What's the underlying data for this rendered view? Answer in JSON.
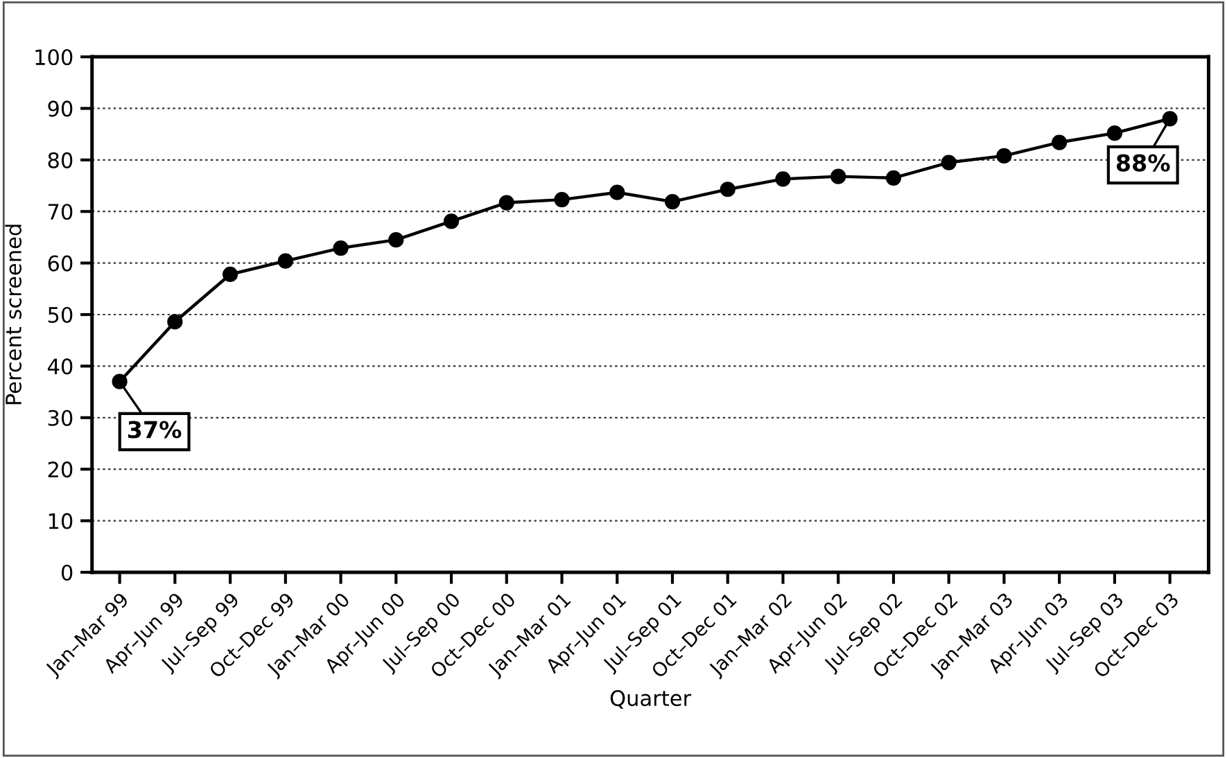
{
  "chart_data": {
    "type": "line",
    "xlabel": "Quarter",
    "ylabel": "Percent screened",
    "categories": [
      "Jan–Mar 99",
      "Apr–Jun 99",
      "Jul–Sep 99",
      "Oct–Dec 99",
      "Jan–Mar 00",
      "Apr–Jun 00",
      "Jul–Sep 00",
      "Oct–Dec 00",
      "Jan–Mar 01",
      "Apr–Jun 01",
      "Jul–Sep 01",
      "Oct–Dec 01",
      "Jan–Mar 02",
      "Apr–Jun 02",
      "Jul–Sep 02",
      "Oct–Dec 02",
      "Jan–Mar 03",
      "Apr–Jun 03",
      "Jul–Sep 03",
      "Oct–Dec 03"
    ],
    "series": [
      {
        "color": "#000000",
        "values": [
          37,
          48.6,
          57.8,
          60.4,
          62.9,
          64.5,
          68.1,
          71.7,
          72.3,
          73.7,
          71.9,
          74.3,
          76.3,
          76.8,
          76.5,
          79.5,
          80.8,
          83.4,
          85.2,
          88
        ]
      }
    ],
    "ylim": [
      0,
      100
    ],
    "yticks": [
      0,
      10,
      20,
      30,
      40,
      50,
      60,
      70,
      80,
      90,
      100
    ],
    "grid": "y",
    "marker": "circle",
    "line_style": "solid",
    "annotations": [
      {
        "text": "37%",
        "x": "Jan–Mar 99",
        "y": 37
      },
      {
        "text": "88%",
        "x": "Oct–Dec 03",
        "y": 88
      }
    ]
  }
}
